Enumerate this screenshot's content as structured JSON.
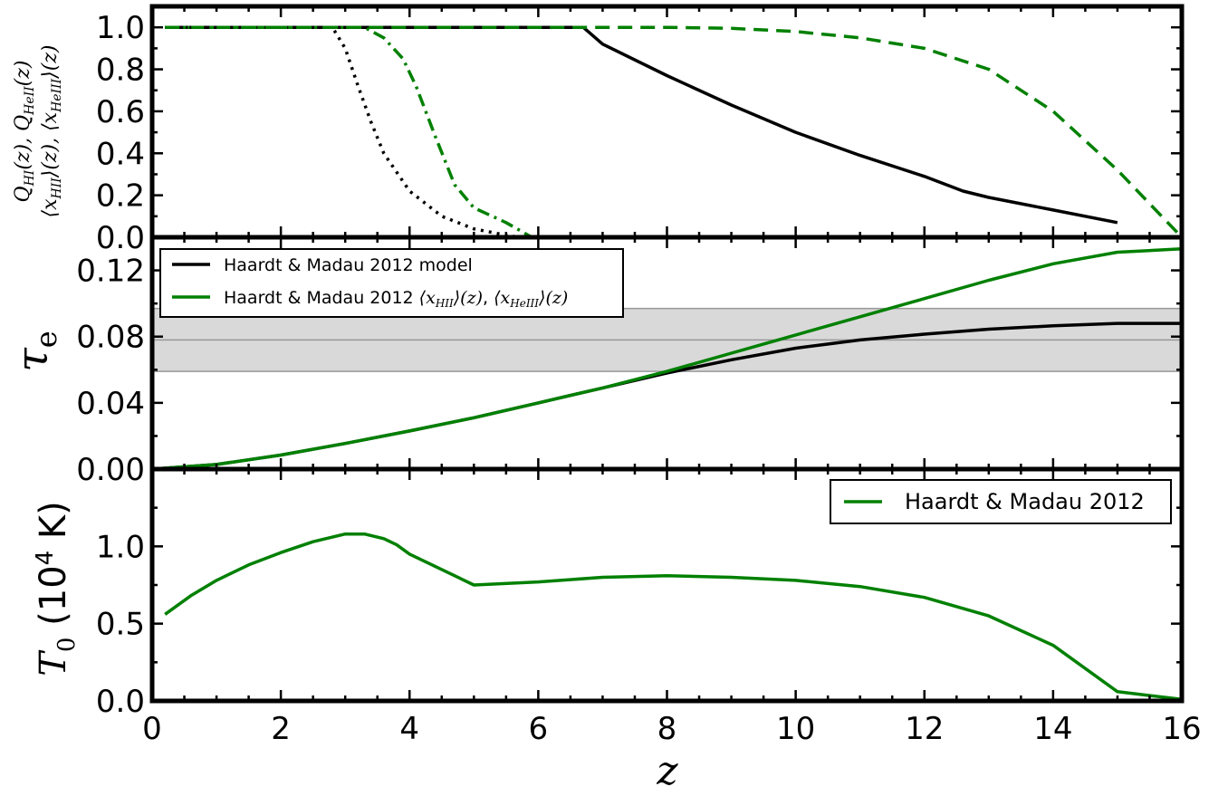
{
  "chart_data": [
    {
      "type": "line",
      "panel": "top",
      "ylabel_lines": [
        "Q_HI(z), Q_HeII(z)",
        "⟨x_HII⟩(z), ⟨x_HeIII⟩(z)"
      ],
      "xlim": [
        0,
        16
      ],
      "ylim": [
        0,
        1.1
      ],
      "yticks": [
        "0.0",
        "0.2",
        "0.4",
        "0.6",
        "0.8",
        "1.0"
      ],
      "series": [
        {
          "style": "solid",
          "color": "#000000",
          "x": [
            0.2,
            1,
            2,
            3,
            4,
            5,
            6,
            6.7,
            7,
            8,
            9,
            10,
            11,
            12,
            12.6,
            13,
            14,
            15
          ],
          "y": [
            1.0,
            1.0,
            1.0,
            1.0,
            1.0,
            1.0,
            1.0,
            1.0,
            0.92,
            0.77,
            0.63,
            0.5,
            0.39,
            0.29,
            0.22,
            0.19,
            0.13,
            0.07
          ]
        },
        {
          "style": "dashed",
          "color": "#008000",
          "x": [
            0.2,
            2,
            4,
            6,
            8,
            9,
            10,
            11,
            12,
            13,
            14,
            15,
            16
          ],
          "y": [
            1.0,
            1.0,
            1.0,
            1.0,
            1.0,
            0.995,
            0.98,
            0.95,
            0.9,
            0.8,
            0.6,
            0.32,
            0.0
          ]
        },
        {
          "style": "dotted",
          "color": "#000000",
          "x": [
            0.2,
            2,
            2.8,
            3.0,
            3.2,
            3.4,
            3.6,
            4.0,
            4.5,
            5.0,
            5.5,
            5.7
          ],
          "y": [
            1.0,
            1.0,
            1.0,
            0.9,
            0.72,
            0.55,
            0.4,
            0.22,
            0.1,
            0.04,
            0.01,
            0.0
          ]
        },
        {
          "style": "dashdot",
          "color": "#008000",
          "x": [
            0.2,
            2,
            3.3,
            3.6,
            3.9,
            4.1,
            4.4,
            4.7,
            5.0,
            5.5,
            5.9
          ],
          "y": [
            1.0,
            1.0,
            1.0,
            0.95,
            0.85,
            0.72,
            0.48,
            0.25,
            0.14,
            0.07,
            0.0
          ]
        }
      ]
    },
    {
      "type": "line",
      "panel": "middle",
      "ylabel": "τe",
      "xlim": [
        0,
        16
      ],
      "ylim": [
        0,
        0.14
      ],
      "yticks": [
        "0.00",
        "0.04",
        "0.08",
        "0.12"
      ],
      "band": {
        "low": 0.059,
        "mid": 0.078,
        "high": 0.097,
        "color": "#d9d9d9"
      },
      "legend": [
        "Haardt & Madau 2012 model",
        "Haardt & Madau 2012 ⟨x_HII⟩(z), ⟨x_HeIII⟩(z)"
      ],
      "series": [
        {
          "name": "Haardt & Madau 2012 model",
          "color": "#000000",
          "x": [
            0,
            1,
            2,
            3,
            4,
            5,
            6,
            7,
            8,
            9,
            10,
            11,
            12,
            13,
            14,
            15,
            16
          ],
          "y": [
            0,
            0.0028,
            0.0085,
            0.0155,
            0.023,
            0.031,
            0.04,
            0.049,
            0.058,
            0.066,
            0.073,
            0.078,
            0.0815,
            0.0845,
            0.0865,
            0.088,
            0.088
          ]
        },
        {
          "name": "Haardt & Madau 2012 ⟨x_HII⟩(z), ⟨x_HeIII⟩(z)",
          "color": "#008000",
          "x": [
            0,
            1,
            2,
            3,
            4,
            5,
            6,
            7,
            8,
            9,
            10,
            11,
            12,
            13,
            14,
            15,
            16
          ],
          "y": [
            0,
            0.0028,
            0.0085,
            0.0155,
            0.023,
            0.031,
            0.04,
            0.049,
            0.059,
            0.07,
            0.081,
            0.092,
            0.103,
            0.114,
            0.124,
            0.131,
            0.133
          ]
        }
      ]
    },
    {
      "type": "line",
      "panel": "bottom",
      "ylabel": "T0 (10^4 K)",
      "xlabel": "z",
      "xlim": [
        0,
        16
      ],
      "ylim": [
        0,
        1.5
      ],
      "yticks": [
        "0.0",
        "0.5",
        "1.0"
      ],
      "xticks": [
        "0",
        "2",
        "4",
        "6",
        "8",
        "10",
        "12",
        "14",
        "16"
      ],
      "legend": [
        "Haardt & Madau 2012"
      ],
      "series": [
        {
          "name": "Haardt & Madau 2012",
          "color": "#008000",
          "x": [
            0.2,
            0.6,
            1.0,
            1.5,
            2.0,
            2.5,
            3.0,
            3.3,
            3.6,
            3.8,
            4.0,
            4.5,
            5.0,
            6.0,
            7.0,
            8.0,
            9.0,
            10.0,
            11.0,
            12.0,
            13.0,
            14.0,
            15.0,
            16.0
          ],
          "y": [
            0.56,
            0.68,
            0.78,
            0.88,
            0.96,
            1.03,
            1.08,
            1.08,
            1.05,
            1.01,
            0.95,
            0.85,
            0.75,
            0.77,
            0.8,
            0.81,
            0.8,
            0.78,
            0.74,
            0.67,
            0.55,
            0.36,
            0.06,
            0.01
          ]
        }
      ]
    }
  ]
}
